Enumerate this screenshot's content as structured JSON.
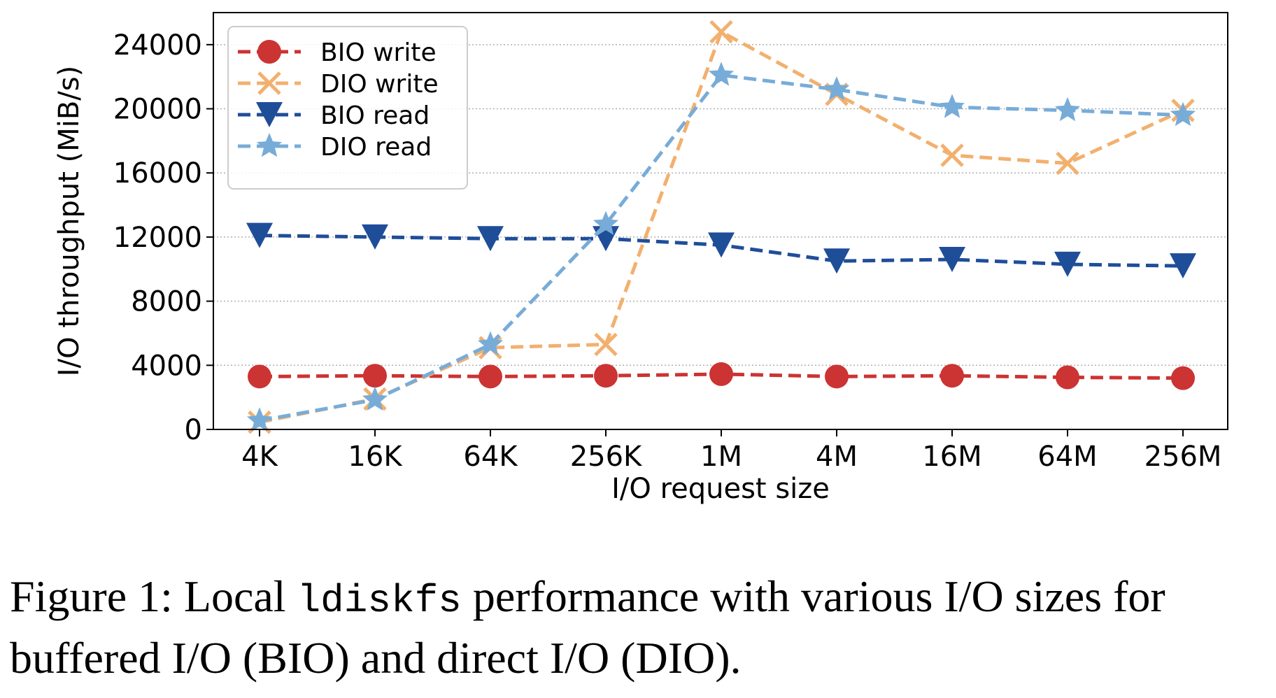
{
  "chart_data": {
    "type": "line",
    "xlabel": "I/O request size",
    "ylabel": "I/O throughput (MiB/s)",
    "categories": [
      "4K",
      "16K",
      "64K",
      "256K",
      "1M",
      "4M",
      "16M",
      "64M",
      "256M"
    ],
    "ylim": [
      0,
      26000
    ],
    "yticks": [
      0,
      4000,
      8000,
      12000,
      16000,
      20000,
      24000
    ],
    "grid": "horizontal dotted",
    "legend_position": "top-left",
    "series": [
      {
        "name": "BIO write",
        "marker": "circle",
        "color": "#cc3333",
        "values": [
          3300,
          3350,
          3300,
          3350,
          3450,
          3300,
          3350,
          3250,
          3200
        ]
      },
      {
        "name": "DIO write",
        "marker": "x",
        "color": "#f2b06e",
        "values": [
          450,
          1900,
          5100,
          5300,
          24800,
          20900,
          17100,
          16600,
          19900
        ]
      },
      {
        "name": "BIO read",
        "marker": "triangle-down",
        "color": "#1f4e99",
        "values": [
          12100,
          12000,
          11900,
          11900,
          11500,
          10500,
          10600,
          10300,
          10200
        ]
      },
      {
        "name": "DIO read",
        "marker": "star",
        "color": "#78acd8",
        "values": [
          550,
          1850,
          5300,
          12800,
          22100,
          21200,
          20100,
          19900,
          19600
        ]
      }
    ]
  },
  "caption": {
    "prefix": "Figure 1: Local ",
    "code": "ldiskfs",
    "rest": " performance with various I/O sizes for buffered I/O (BIO) and direct I/O (DIO)."
  }
}
